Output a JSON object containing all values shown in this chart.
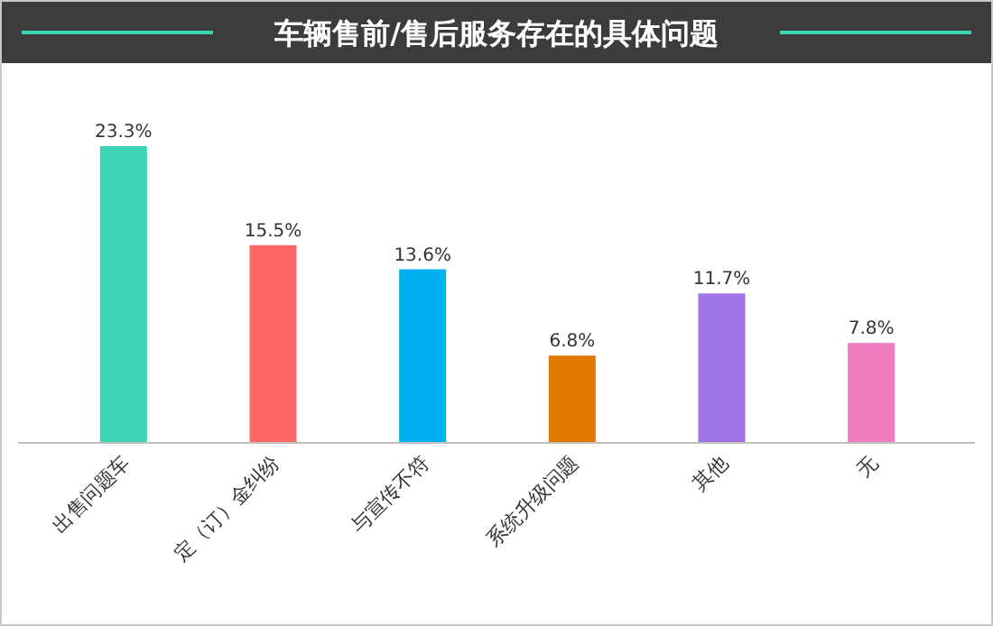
{
  "chart_data": {
    "type": "bar",
    "title": "车辆售前/售后服务存在的具体问题",
    "categories": [
      "出售问题车",
      "定（订）金纠纷",
      "与宣传不符",
      "系统升级问题",
      "其他",
      "无"
    ],
    "values": [
      23.3,
      15.5,
      13.6,
      6.8,
      11.7,
      7.8
    ],
    "colors": [
      "#3dd6b5",
      "#ff6666",
      "#00b0f0",
      "#e07800",
      "#9e74e6",
      "#f07cc0"
    ],
    "value_labels": [
      "23.3%",
      "15.5%",
      "13.6%",
      "6.8%",
      "11.7%",
      "7.8%"
    ]
  }
}
